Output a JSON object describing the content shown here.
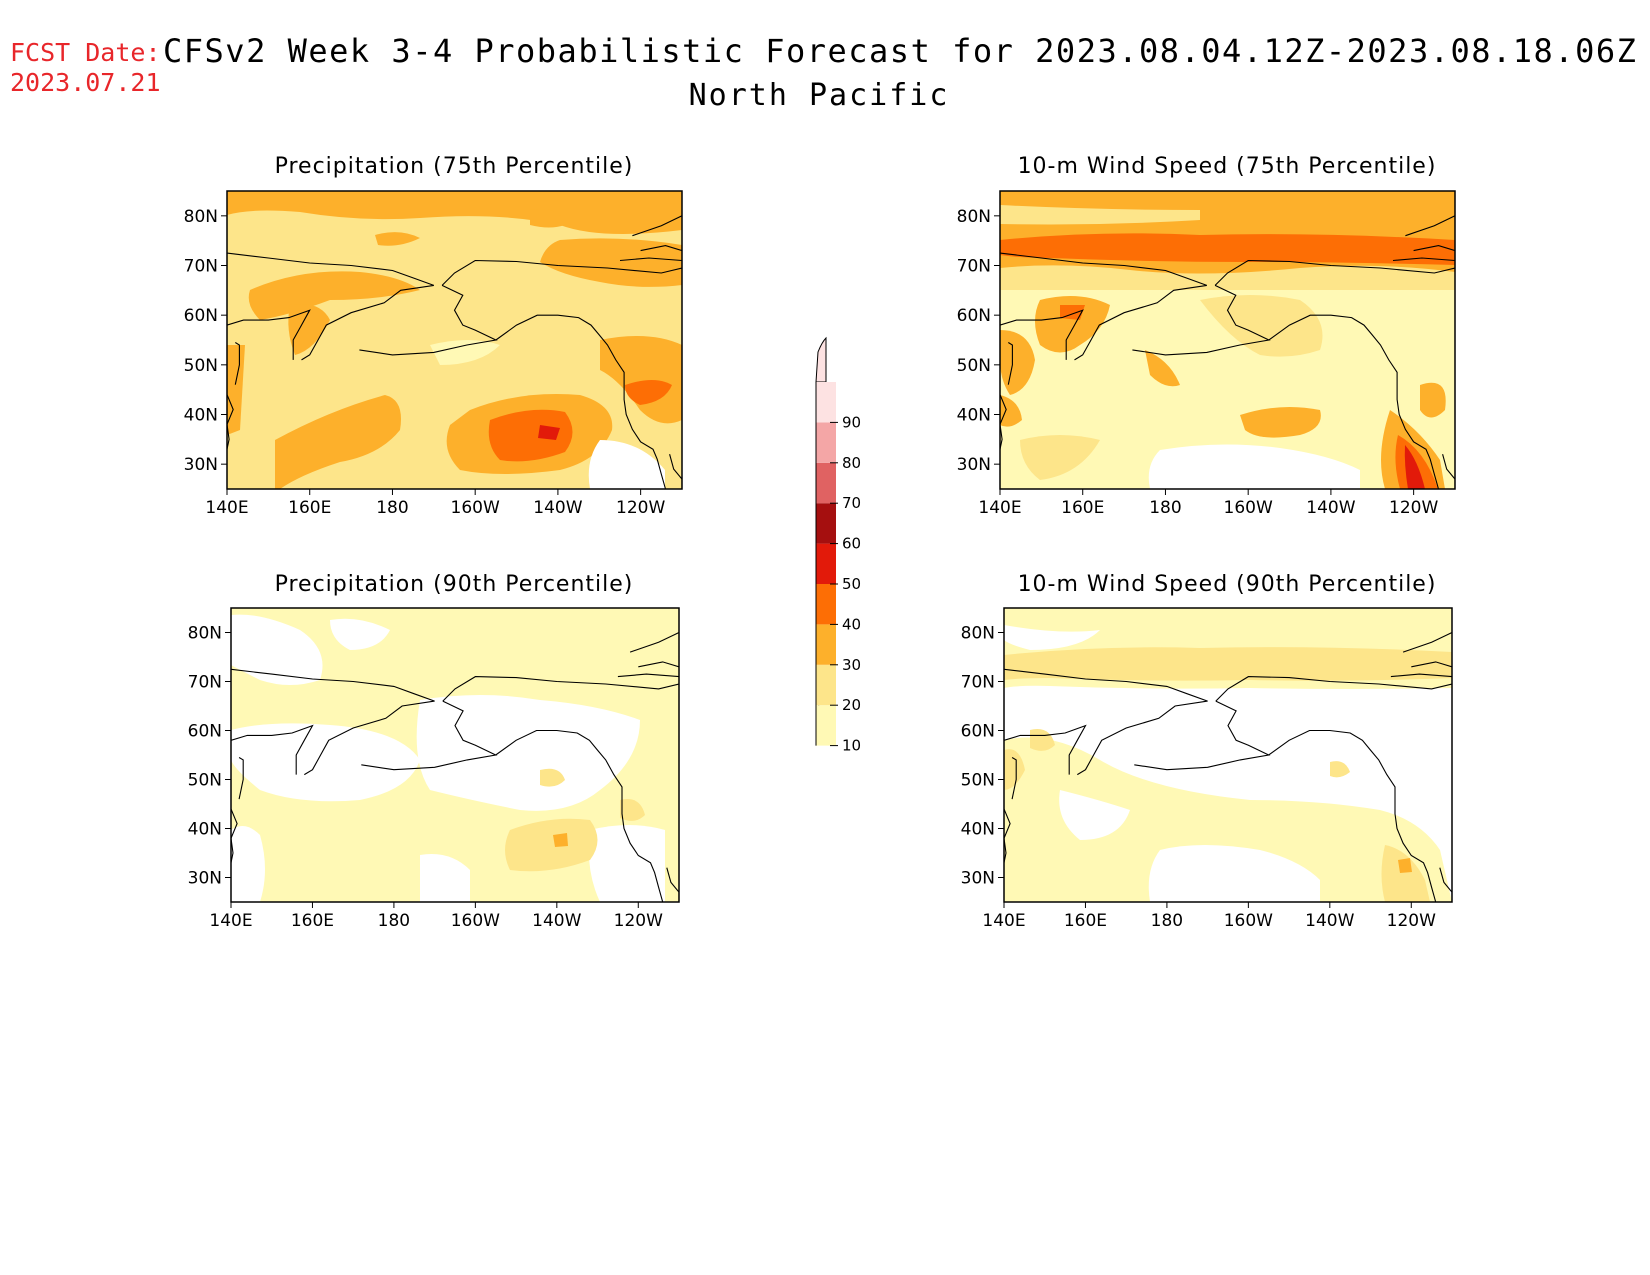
{
  "header": {
    "fcst_label": "FCST Date:",
    "fcst_date": "2023.07.21",
    "title": "CFSv2 Week 3-4 Probabilistic Forecast for 2023.08.04.12Z-2023.08.18.06Z",
    "region": "North Pacific"
  },
  "axes": {
    "lat_ticks": [
      "80N",
      "70N",
      "60N",
      "50N",
      "40N",
      "30N"
    ],
    "lon_ticks": [
      "140E",
      "160E",
      "180",
      "160W",
      "140W",
      "120W"
    ],
    "lat_range": [
      25,
      85
    ],
    "lon_range": [
      140,
      250
    ]
  },
  "panels": [
    {
      "id": "precip-75",
      "title": "Precipitation (75th Percentile)"
    },
    {
      "id": "wind-75",
      "title": "10-m Wind Speed (75th Percentile)"
    },
    {
      "id": "precip-90",
      "title": "Precipitation (90th Percentile)"
    },
    {
      "id": "wind-90",
      "title": "10-m Wind Speed (90th Percentile)"
    }
  ],
  "colorbar": {
    "labels": [
      "10",
      "20",
      "30",
      "40",
      "50",
      "60",
      "70",
      "80",
      "90"
    ],
    "colors": [
      "#fff9b5",
      "#fde58a",
      "#fdb02b",
      "#fd6e05",
      "#e21a0a",
      "#a50f0f",
      "#e06262",
      "#f4a6a6",
      "#fde2e2"
    ]
  }
}
